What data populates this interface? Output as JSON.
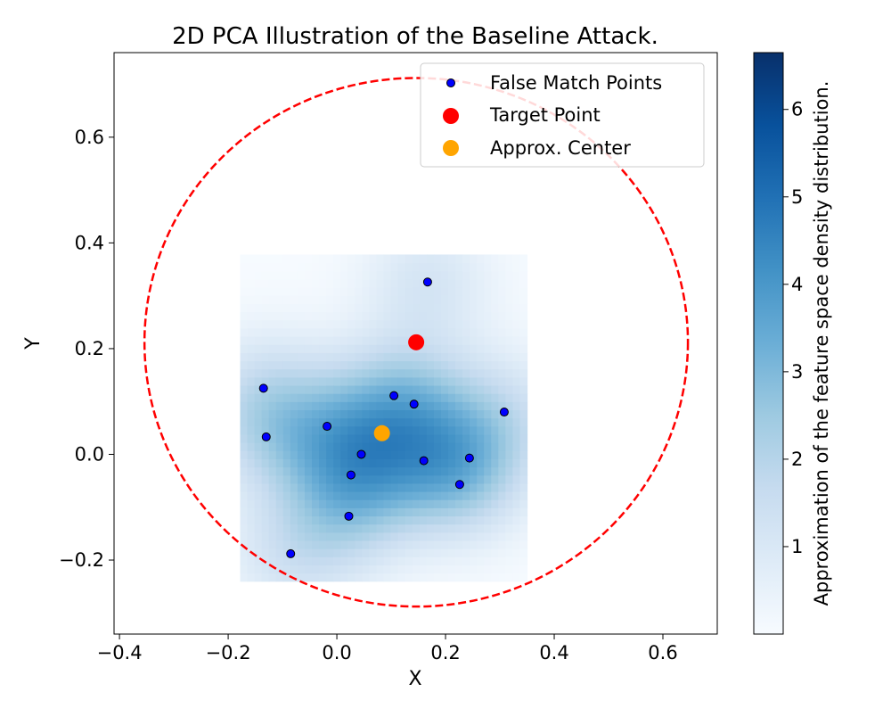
{
  "chart_data": {
    "type": "scatter",
    "title": "2D PCA Illustration of the Baseline Attack.",
    "xlabel": "X",
    "ylabel": "Y",
    "xlim": [
      -0.41,
      0.7
    ],
    "ylim": [
      -0.34,
      0.76
    ],
    "xticks": [
      -0.4,
      -0.2,
      0.0,
      0.2,
      0.4,
      0.6
    ],
    "xtick_labels": [
      "−0.4",
      "−0.2",
      "0.0",
      "0.2",
      "0.4",
      "0.6"
    ],
    "yticks": [
      -0.2,
      0.0,
      0.2,
      0.4,
      0.6
    ],
    "ytick_labels": [
      "−0.2",
      "0.0",
      "0.2",
      "0.4",
      "0.6"
    ],
    "grid": false,
    "legend_position": "top-right",
    "series": [
      {
        "name": "False Match Points",
        "color": "#0000ff",
        "edge_color": "#000000",
        "points": [
          {
            "x": -0.135,
            "y": 0.125
          },
          {
            "x": -0.13,
            "y": 0.033
          },
          {
            "x": -0.085,
            "y": -0.188
          },
          {
            "x": -0.018,
            "y": 0.053
          },
          {
            "x": 0.022,
            "y": -0.117
          },
          {
            "x": 0.026,
            "y": -0.039
          },
          {
            "x": 0.045,
            "y": 0.0
          },
          {
            "x": 0.105,
            "y": 0.111
          },
          {
            "x": 0.142,
            "y": 0.095
          },
          {
            "x": 0.16,
            "y": -0.012
          },
          {
            "x": 0.167,
            "y": 0.326
          },
          {
            "x": 0.226,
            "y": -0.057
          },
          {
            "x": 0.244,
            "y": -0.007
          },
          {
            "x": 0.308,
            "y": 0.08
          }
        ]
      },
      {
        "name": "Target Point",
        "color": "#ff0000",
        "points": [
          {
            "x": 0.146,
            "y": 0.212
          }
        ]
      },
      {
        "name": "Approx. Center",
        "color": "#ffa500",
        "points": [
          {
            "x": 0.083,
            "y": 0.04
          }
        ]
      }
    ],
    "circle": {
      "center": {
        "x": 0.146,
        "y": 0.212
      },
      "radius": 0.5,
      "color": "#ff0000",
      "style": "dashed"
    },
    "heatmap": {
      "colormap": "Blues",
      "x_range": [
        -0.178,
        0.35
      ],
      "y_range": [
        -0.24,
        0.378
      ],
      "vmin": 0.0,
      "vmax": 6.65
    },
    "colorbar": {
      "label": "Approximation of the feature space density distribution.",
      "ticks": [
        1,
        2,
        3,
        4,
        5,
        6
      ],
      "tick_labels": [
        "1",
        "2",
        "3",
        "4",
        "5",
        "6"
      ],
      "range": [
        0.0,
        6.65
      ]
    }
  }
}
